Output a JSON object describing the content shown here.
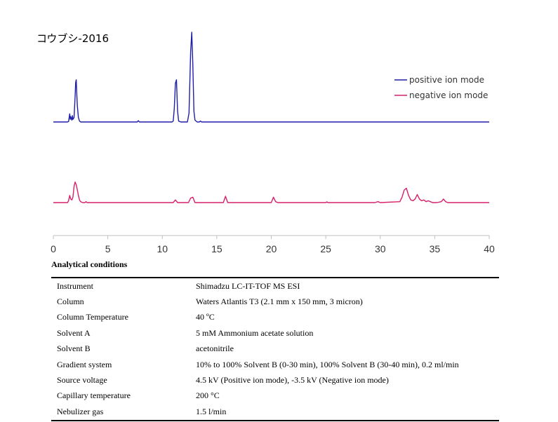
{
  "chart_data": {
    "type": "line",
    "title": "コウブシ-2016",
    "xlabel": "",
    "ylabel": "",
    "xlim": [
      0,
      40
    ],
    "xticks": [
      0,
      5,
      10,
      15,
      20,
      25,
      30,
      35,
      40
    ],
    "grid": false,
    "legend_position": "top-right",
    "series": [
      {
        "name": "positive ion mode",
        "color": "#1f1fa8",
        "x": [
          0,
          1.3,
          1.4,
          1.5,
          1.55,
          1.6,
          1.7,
          1.75,
          1.8,
          1.9,
          2.0,
          2.05,
          2.1,
          2.15,
          2.2,
          2.3,
          2.4,
          2.5,
          3.0,
          7.7,
          7.8,
          7.9,
          8.0,
          10.9,
          11.0,
          11.1,
          11.2,
          11.3,
          11.4,
          11.5,
          11.7,
          12.3,
          12.45,
          12.6,
          12.7,
          12.8,
          12.9,
          13.0,
          13.2,
          13.4,
          13.5,
          13.6,
          40
        ],
        "y": [
          0,
          0,
          0.5,
          9,
          3,
          6,
          2,
          7,
          3,
          5,
          28,
          44,
          47,
          31,
          18,
          5,
          1,
          0,
          0,
          0,
          1.5,
          0,
          0,
          0,
          1,
          15,
          43,
          47,
          12,
          1,
          0,
          0,
          10,
          78,
          100,
          65,
          12,
          2,
          0,
          0,
          1,
          0,
          0
        ]
      },
      {
        "name": "negative ion mode",
        "color": "#d6206a",
        "x": [
          0,
          1.3,
          1.4,
          1.5,
          1.6,
          1.7,
          1.8,
          1.9,
          2.0,
          2.1,
          2.2,
          2.3,
          2.4,
          2.5,
          2.7,
          2.9,
          3.0,
          3.1,
          3.3,
          11.0,
          11.2,
          11.4,
          11.6,
          12.4,
          12.6,
          12.8,
          13.0,
          15.6,
          15.8,
          16.0,
          20.0,
          20.2,
          20.4,
          20.6,
          25.0,
          25.1,
          25.2,
          29.5,
          29.8,
          30.0,
          31.8,
          32.0,
          32.2,
          32.4,
          32.6,
          32.8,
          33.0,
          33.2,
          33.4,
          33.6,
          33.8,
          34.0,
          34.2,
          34.4,
          34.6,
          34.8,
          35.2,
          35.6,
          35.8,
          36.0,
          36.2,
          40
        ],
        "y": [
          0,
          0,
          2,
          8,
          4,
          3,
          6,
          18,
          23,
          20,
          14,
          8,
          3,
          1,
          0,
          0,
          1,
          0,
          0,
          0,
          3,
          0,
          0,
          0,
          5,
          6,
          0,
          0,
          7,
          0,
          0,
          6,
          1,
          0,
          0,
          0.8,
          0,
          0,
          1,
          0,
          1,
          6,
          14,
          16,
          8,
          3,
          2,
          4,
          9,
          4,
          2,
          3,
          1,
          2,
          1,
          0,
          0,
          1,
          4,
          1,
          0,
          0
        ]
      }
    ]
  },
  "conditions": {
    "heading": "Analytical conditions",
    "rows": [
      {
        "key": "Instrument",
        "value": "Shimadzu LC-IT-TOF MS ESI"
      },
      {
        "key": "Column",
        "value": "Waters Atlantis T3 (2.1 mm x 150 mm, 3 micron)"
      },
      {
        "key": "Column Temperature",
        "value": "40 ºC"
      },
      {
        "key": "Solvent A",
        "value": "5 mM Ammonium acetate solution"
      },
      {
        "key": "Solvent B",
        "value": "acetonitrile"
      },
      {
        "key": "Gradient system",
        "value": "10% to 100% Solvent B (0-30 min), 100% Solvent B (30-40 min), 0.2 ml/min"
      },
      {
        "key": "Source voltage",
        "value": "4.5 kV (Positive ion mode), -3.5 kV (Negative ion mode)"
      },
      {
        "key": "Capillary temperature",
        "value": "200 °C"
      },
      {
        "key": "Nebulizer gas",
        "value": "1.5 l/min"
      }
    ]
  }
}
